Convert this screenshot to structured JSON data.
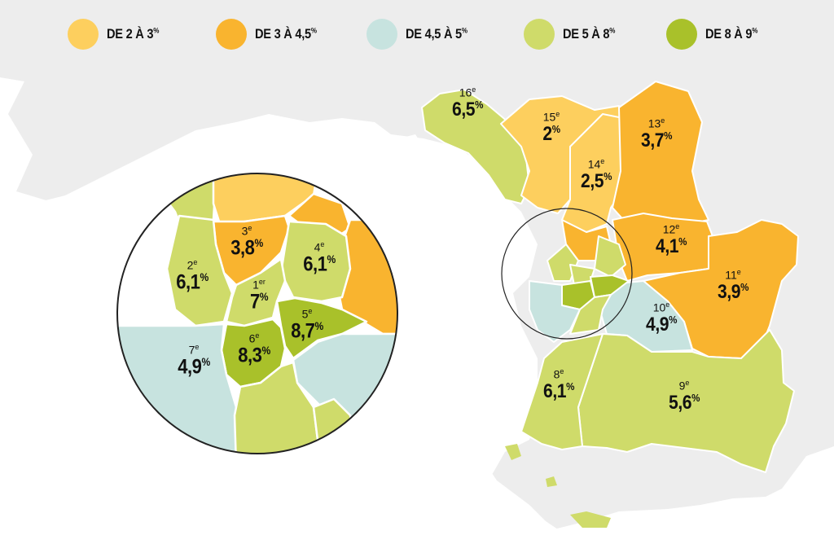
{
  "legend": [
    {
      "main": "DE 2 À 3",
      "unit": "%",
      "color": "#FDCF5E"
    },
    {
      "main": "DE 3 À 4,5",
      "unit": "%",
      "color": "#F9B42F"
    },
    {
      "main": "DE 4,5 À 5",
      "unit": "%",
      "color": "#C7E3DF"
    },
    {
      "main": "DE 5 À 8",
      "unit": "%",
      "color": "#CFDB6A"
    },
    {
      "main": "DE 8 À 9",
      "unit": "%",
      "color": "#A9C12A"
    }
  ],
  "colors": {
    "sea": "#FFFFFF",
    "land": "#EDEDED",
    "border": "#FFFFFF",
    "circle": "#222222"
  },
  "arrondissements": [
    {
      "name": "16",
      "suffix": "e",
      "value": "6,5",
      "unit": "%"
    },
    {
      "name": "15",
      "suffix": "e",
      "value": "2",
      "unit": "%"
    },
    {
      "name": "14",
      "suffix": "e",
      "value": "2,5",
      "unit": "%"
    },
    {
      "name": "13",
      "suffix": "e",
      "value": "3,7",
      "unit": "%"
    },
    {
      "name": "12",
      "suffix": "e",
      "value": "4,1",
      "unit": "%"
    },
    {
      "name": "11",
      "suffix": "e",
      "value": "3,9",
      "unit": "%"
    },
    {
      "name": "10",
      "suffix": "e",
      "value": "4,9",
      "unit": "%"
    },
    {
      "name": "9",
      "suffix": "e",
      "value": "5,6",
      "unit": "%"
    },
    {
      "name": "8",
      "suffix": "e",
      "value": "6,1",
      "unit": "%"
    }
  ],
  "zoom": [
    {
      "name": "3",
      "suffix": "e",
      "value": "3,8",
      "unit": "%"
    },
    {
      "name": "2",
      "suffix": "e",
      "value": "6,1",
      "unit": "%"
    },
    {
      "name": "4",
      "suffix": "e",
      "value": "6,1",
      "unit": "%"
    },
    {
      "name": "1",
      "suffix": "er",
      "value": "7",
      "unit": "%"
    },
    {
      "name": "5",
      "suffix": "e",
      "value": "8,7",
      "unit": "%"
    },
    {
      "name": "6",
      "suffix": "e",
      "value": "8,3",
      "unit": "%"
    },
    {
      "name": "7",
      "suffix": "e",
      "value": "4,9",
      "unit": "%"
    }
  ]
}
